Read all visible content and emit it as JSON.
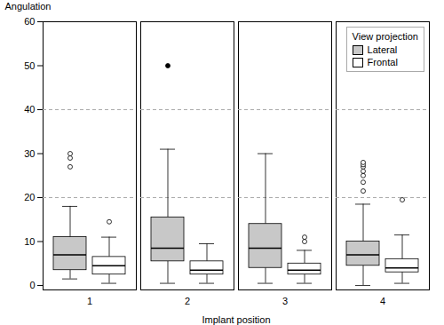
{
  "chart_data": {
    "type": "box",
    "xlabel": "Implant position",
    "ylabel": "Angulation",
    "categories": [
      "1",
      "2",
      "3",
      "4"
    ],
    "ylim": [
      -1,
      60
    ],
    "yticks": [
      0,
      10,
      20,
      30,
      40,
      50,
      60
    ],
    "grid": false,
    "hlines": [
      20,
      40
    ],
    "legend": "upper right",
    "legend_title": "View projection",
    "series": [
      {
        "name": "Lateral",
        "color": "#c8c8c8",
        "q1": [
          3.5,
          5.5,
          4.0,
          4.5
        ],
        "median": [
          7.0,
          8.5,
          8.5,
          7.0
        ],
        "q3": [
          11.0,
          15.5,
          14.0,
          10.0
        ],
        "whislo": [
          1.5,
          0.5,
          0.5,
          0.0
        ],
        "whishi": [
          18.0,
          31.0,
          30.0,
          18.5
        ],
        "fliers": [
          [
            27.0,
            29.0,
            30.0
          ],
          [],
          [],
          [
            21.5,
            23.5,
            25.0,
            26.0,
            27.0,
            27.5,
            28.0
          ]
        ],
        "fliers_filled": [
          [],
          [
            50.0
          ],
          [],
          []
        ]
      },
      {
        "name": "Frontal",
        "color": "#ffffff",
        "q1": [
          2.5,
          2.5,
          2.5,
          3.0
        ],
        "median": [
          4.5,
          3.5,
          3.5,
          4.0
        ],
        "q3": [
          6.5,
          5.5,
          5.0,
          6.0
        ],
        "whislo": [
          0.5,
          0.5,
          0.5,
          0.5
        ],
        "whishi": [
          11.0,
          9.5,
          8.0,
          11.5
        ],
        "fliers": [
          [
            14.5
          ],
          [],
          [
            10.0,
            11.0
          ],
          [
            19.5
          ]
        ],
        "fliers_filled": [
          [],
          [],
          [],
          []
        ]
      }
    ]
  }
}
